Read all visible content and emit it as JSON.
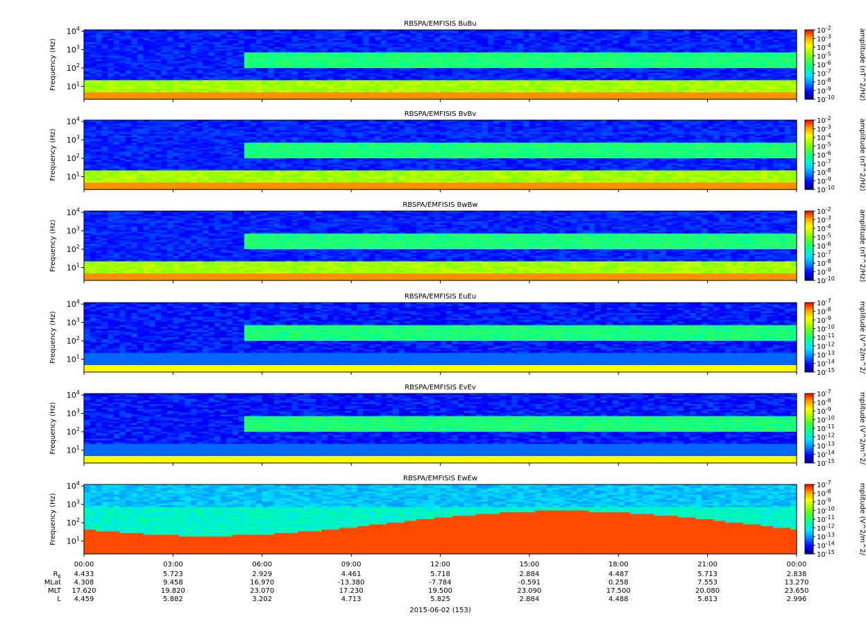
{
  "chart_data": [
    {
      "type": "heatmap",
      "title": "RBSPA/EMFISIS  BuBu",
      "ylabel": "Frequency (Hz)",
      "yscale": "log",
      "ylim": [
        2,
        12000
      ],
      "yticks": [
        "10",
        "10",
        "10",
        "10"
      ],
      "ytick_exp": [
        "1",
        "2",
        "3",
        "4"
      ],
      "colorbar": {
        "label": "amplitude (nT^2/Hz)",
        "scale": "log",
        "range": [
          1e-10,
          0.01
        ],
        "ticks": [
          {
            "m": "10",
            "e": "-2"
          },
          {
            "m": "10",
            "e": "-3"
          },
          {
            "m": "10",
            "e": "-4"
          },
          {
            "m": "10",
            "e": "-5"
          },
          {
            "m": "10",
            "e": "-6"
          },
          {
            "m": "10",
            "e": "-7"
          },
          {
            "m": "10",
            "e": "-8"
          },
          {
            "m": "10",
            "e": "-9"
          },
          {
            "m": "10",
            "e": "-10"
          }
        ]
      }
    },
    {
      "type": "heatmap",
      "title": "RBSPA/EMFISIS  BvBv",
      "ylabel": "Frequency (Hz)",
      "yscale": "log",
      "ylim": [
        2,
        12000
      ],
      "yticks": [
        "10",
        "10",
        "10",
        "10"
      ],
      "ytick_exp": [
        "1",
        "2",
        "3",
        "4"
      ],
      "colorbar": {
        "label": "amplitude (nT^2/Hz)",
        "scale": "log",
        "range": [
          1e-10,
          0.01
        ],
        "ticks": [
          {
            "m": "10",
            "e": "-2"
          },
          {
            "m": "10",
            "e": "-3"
          },
          {
            "m": "10",
            "e": "-4"
          },
          {
            "m": "10",
            "e": "-5"
          },
          {
            "m": "10",
            "e": "-6"
          },
          {
            "m": "10",
            "e": "-7"
          },
          {
            "m": "10",
            "e": "-8"
          },
          {
            "m": "10",
            "e": "-9"
          },
          {
            "m": "10",
            "e": "-10"
          }
        ]
      }
    },
    {
      "type": "heatmap",
      "title": "RBSPA/EMFISIS  BwBw",
      "ylabel": "Frequency (Hz)",
      "yscale": "log",
      "ylim": [
        2,
        12000
      ],
      "yticks": [
        "10",
        "10",
        "10",
        "10"
      ],
      "ytick_exp": [
        "1",
        "2",
        "3",
        "4"
      ],
      "colorbar": {
        "label": "amplitude (nT^2/Hz)",
        "scale": "log",
        "range": [
          1e-10,
          0.01
        ],
        "ticks": [
          {
            "m": "10",
            "e": "-2"
          },
          {
            "m": "10",
            "e": "-3"
          },
          {
            "m": "10",
            "e": "-4"
          },
          {
            "m": "10",
            "e": "-5"
          },
          {
            "m": "10",
            "e": "-6"
          },
          {
            "m": "10",
            "e": "-7"
          },
          {
            "m": "10",
            "e": "-8"
          },
          {
            "m": "10",
            "e": "-9"
          },
          {
            "m": "10",
            "e": "-10"
          }
        ]
      }
    },
    {
      "type": "heatmap",
      "title": "RBSPA/EMFISIS  EuEu",
      "ylabel": "Frequency (Hz)",
      "yscale": "log",
      "ylim": [
        2,
        12000
      ],
      "yticks": [
        "10",
        "10",
        "10",
        "10"
      ],
      "ytick_exp": [
        "1",
        "2",
        "3",
        "4"
      ],
      "colorbar": {
        "label": "mplitude (V^2/m^2/",
        "scale": "log",
        "range": [
          1e-15,
          1e-07
        ],
        "ticks": [
          {
            "m": "10",
            "e": "-7"
          },
          {
            "m": "10",
            "e": "-8"
          },
          {
            "m": "10",
            "e": "-9"
          },
          {
            "m": "10",
            "e": "-10"
          },
          {
            "m": "10",
            "e": "-11"
          },
          {
            "m": "10",
            "e": "-12"
          },
          {
            "m": "10",
            "e": "-13"
          },
          {
            "m": "10",
            "e": "-14"
          },
          {
            "m": "10",
            "e": "-15"
          }
        ]
      }
    },
    {
      "type": "heatmap",
      "title": "RBSPA/EMFISIS  EvEv",
      "ylabel": "Frequency (Hz)",
      "yscale": "log",
      "ylim": [
        2,
        12000
      ],
      "yticks": [
        "10",
        "10",
        "10",
        "10"
      ],
      "ytick_exp": [
        "1",
        "2",
        "3",
        "4"
      ],
      "colorbar": {
        "label": "mplitude (V^2/m^2/",
        "scale": "log",
        "range": [
          1e-15,
          1e-07
        ],
        "ticks": [
          {
            "m": "10",
            "e": "-7"
          },
          {
            "m": "10",
            "e": "-8"
          },
          {
            "m": "10",
            "e": "-9"
          },
          {
            "m": "10",
            "e": "-10"
          },
          {
            "m": "10",
            "e": "-11"
          },
          {
            "m": "10",
            "e": "-12"
          },
          {
            "m": "10",
            "e": "-13"
          },
          {
            "m": "10",
            "e": "-14"
          },
          {
            "m": "10",
            "e": "-15"
          }
        ]
      }
    },
    {
      "type": "heatmap",
      "title": "RBSPA/EMFISIS  EwEw",
      "ylabel": "Frequency (Hz)",
      "yscale": "log",
      "ylim": [
        2,
        12000
      ],
      "yticks": [
        "10",
        "10",
        "10",
        "10"
      ],
      "ytick_exp": [
        "1",
        "2",
        "3",
        "4"
      ],
      "colorbar": {
        "label": "mplitude (V^2/m^2/",
        "scale": "log",
        "range": [
          1e-15,
          1e-07
        ],
        "ticks": [
          {
            "m": "10",
            "e": "-7"
          },
          {
            "m": "10",
            "e": "-8"
          },
          {
            "m": "10",
            "e": "-9"
          },
          {
            "m": "10",
            "e": "-10"
          },
          {
            "m": "10",
            "e": "-11"
          },
          {
            "m": "10",
            "e": "-12"
          },
          {
            "m": "10",
            "e": "-13"
          },
          {
            "m": "10",
            "e": "-14"
          },
          {
            "m": "10",
            "e": "-15"
          }
        ]
      }
    }
  ],
  "time_axis": {
    "ticks": [
      "00:00",
      "03:00",
      "06:00",
      "09:00",
      "12:00",
      "15:00",
      "18:00",
      "21:00",
      "00:00"
    ],
    "date_label": "2015-06-02 (153)",
    "ephemeris": [
      {
        "label": "R",
        "sub": "E",
        "values": [
          "4.433",
          "5.723",
          "2.929",
          "4.461",
          "5.718",
          "2.884",
          "4.487",
          "5.713",
          "2.838"
        ]
      },
      {
        "label": "MLat",
        "values": [
          "4.308",
          "9.458",
          "16.970",
          "-13.380",
          "-7.784",
          "-0.591",
          "0.258",
          "7.553",
          "13.270"
        ]
      },
      {
        "label": "MLT",
        "values": [
          "17.620",
          "19.820",
          "23.070",
          "17.230",
          "19.500",
          "23.090",
          "17.500",
          "20.080",
          "23.650"
        ]
      },
      {
        "label": "L",
        "values": [
          "4.459",
          "5.882",
          "3.202",
          "4.713",
          "5.825",
          "2.884",
          "4.488",
          "5.813",
          "2.996"
        ]
      }
    ]
  },
  "colors": {
    "colormap": [
      "#00008c",
      "#0000ff",
      "#0080ff",
      "#00e0ff",
      "#00ffa0",
      "#40ff40",
      "#a0ff00",
      "#ffff00",
      "#ffa000",
      "#ff0000"
    ],
    "background": "#ffffff"
  }
}
